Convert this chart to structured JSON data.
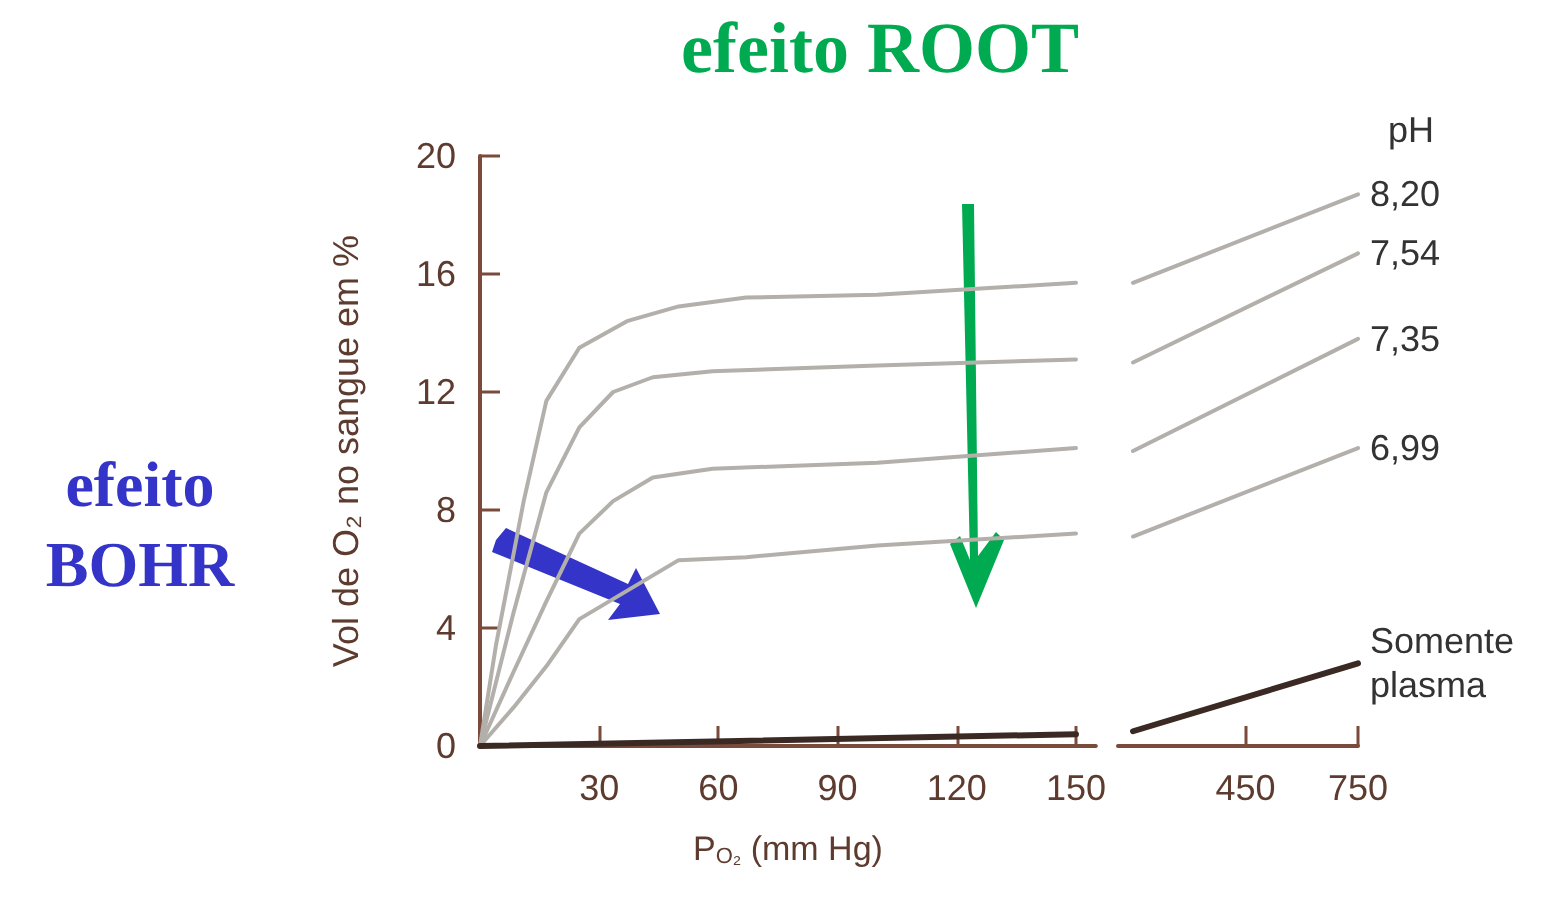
{
  "chart_data": [
    {
      "type": "line",
      "xlabel": "P$_{O₂}$ (mm Hg)",
      "ylabel": "Vol de O₂ no sangue em %",
      "annotations": [
        "efeito ROOT",
        "efeito BOHR"
      ],
      "xlim": [
        0,
        155
      ],
      "xticks": [
        30,
        60,
        90,
        120,
        150
      ],
      "ylim": [
        0,
        20
      ],
      "yticks": [
        0,
        4,
        8,
        12,
        16,
        20
      ],
      "grid": false,
      "legend": false,
      "marker": "none",
      "line_style": "solid",
      "series": [
        {
          "color": "#b3afab",
          "x": [
            0,
            4,
            11,
            16.7,
            25,
            37,
            50,
            67,
            100,
            150
          ],
          "values": [
            0,
            3.4,
            8.3,
            11.7,
            13.5,
            14.4,
            14.9,
            15.2,
            15.3,
            15.7
          ]
        },
        {
          "color": "#b3afab",
          "x": [
            0,
            8.4,
            16.7,
            25,
            33.5,
            43.5,
            58.5,
            100,
            150
          ],
          "values": [
            0,
            4.5,
            8.6,
            10.8,
            12.0,
            12.5,
            12.7,
            12.9,
            13.1
          ]
        },
        {
          "color": "#b3afab",
          "x": [
            0,
            8.4,
            16.7,
            25,
            33.5,
            43.5,
            58.5,
            100,
            150
          ],
          "values": [
            0,
            2.5,
            4.9,
            7.2,
            8.3,
            9.1,
            9.4,
            9.6,
            10.1
          ]
        },
        {
          "color": "#b3afab",
          "x": [
            0,
            8.4,
            16.7,
            25,
            50,
            67,
            100,
            150
          ],
          "values": [
            0,
            1.3,
            2.7,
            4.3,
            6.3,
            6.4,
            6.8,
            7.2
          ]
        },
        {
          "color": "#3b2a24",
          "x": [
            0,
            150
          ],
          "values": [
            0,
            0.4
          ]
        }
      ]
    },
    {
      "type": "line",
      "legend_title": "pH",
      "xlim": [
        110,
        750
      ],
      "xticks": [
        450,
        750
      ],
      "ylim": [
        0,
        20
      ],
      "tick_labels": "x",
      "grid": false,
      "legend": false,
      "marker": "none",
      "line_style": "solid",
      "series": [
        {
          "name": "8,20",
          "color": "#b3afab",
          "x": [
            150,
            750
          ],
          "values": [
            15.7,
            18.7
          ]
        },
        {
          "name": "7,54",
          "color": "#b3afab",
          "x": [
            150,
            750
          ],
          "values": [
            13.0,
            16.7
          ]
        },
        {
          "name": "7,35",
          "color": "#b3afab",
          "x": [
            150,
            750
          ],
          "values": [
            10.0,
            13.8
          ]
        },
        {
          "name": "6,99",
          "color": "#b3afab",
          "x": [
            150,
            750
          ],
          "values": [
            7.1,
            10.1
          ]
        },
        {
          "name": "Somente plasma",
          "color": "#3b2a24",
          "x": [
            150,
            750
          ],
          "values": [
            0.5,
            2.8
          ]
        }
      ]
    }
  ]
}
